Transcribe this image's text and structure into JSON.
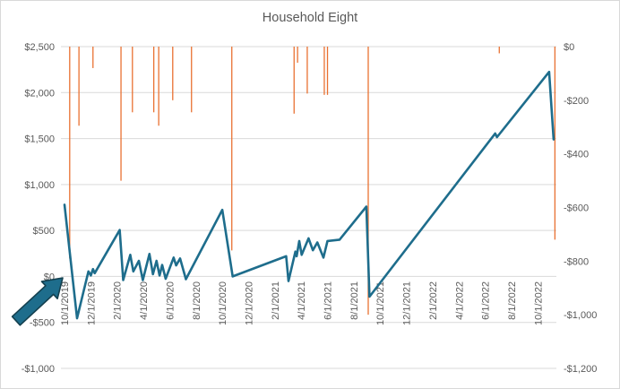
{
  "chart_data": {
    "type": "line",
    "title": "Household Eight",
    "legend": "none",
    "grid": true,
    "style": {
      "background": "#ffffff",
      "gridline_color": "#d9d9d9",
      "label_color": "#595959",
      "title_color": "#595959"
    },
    "x_axis": {
      "kind": "date",
      "start": "2019-10-01",
      "months_per_tick": 2,
      "tick_labels": [
        "10/1/2019",
        "12/1/2019",
        "2/1/2020",
        "4/1/2020",
        "6/1/2020",
        "8/1/2020",
        "10/1/2020",
        "12/1/2020",
        "2/1/2021",
        "4/1/2021",
        "6/1/2021",
        "8/1/2021",
        "10/1/2021",
        "12/1/2021",
        "2/1/2022",
        "4/1/2022",
        "6/1/2022",
        "8/1/2022",
        "10/1/2022"
      ],
      "label_rotation_deg": -90
    },
    "y_axis_left": {
      "min": -1000,
      "max": 2500,
      "step": 500,
      "tick_labels": [
        "$2,500",
        "$2,000",
        "$1,500",
        "$1,000",
        "$500",
        "$0",
        "-$500",
        "-$1,000"
      ]
    },
    "y_axis_right": {
      "min": -1200,
      "max": 0,
      "step": 200,
      "tick_labels": [
        "$0",
        "-$200",
        "-$400",
        "-$600",
        "-$800",
        "-$1,000",
        "-$1,200"
      ]
    },
    "series": [
      {
        "id": "balance-line",
        "type": "line",
        "axis": "left",
        "color": "#1e6d8c",
        "width": 2.6,
        "points": [
          [
            "2019-10-01",
            780
          ],
          [
            "2019-10-30",
            -455
          ],
          [
            "2019-11-26",
            55
          ],
          [
            "2019-12-01",
            10
          ],
          [
            "2019-12-06",
            80
          ],
          [
            "2019-12-10",
            35
          ],
          [
            "2020-02-07",
            505
          ],
          [
            "2020-02-15",
            -40
          ],
          [
            "2020-03-01",
            235
          ],
          [
            "2020-03-08",
            55
          ],
          [
            "2020-03-21",
            170
          ],
          [
            "2020-03-30",
            -40
          ],
          [
            "2020-04-15",
            245
          ],
          [
            "2020-04-23",
            25
          ],
          [
            "2020-05-01",
            170
          ],
          [
            "2020-05-08",
            10
          ],
          [
            "2020-05-14",
            125
          ],
          [
            "2020-05-22",
            -25
          ],
          [
            "2020-06-10",
            205
          ],
          [
            "2020-06-16",
            120
          ],
          [
            "2020-06-25",
            195
          ],
          [
            "2020-07-08",
            -30
          ],
          [
            "2020-10-01",
            725
          ],
          [
            "2020-10-25",
            0
          ],
          [
            "2021-02-27",
            220
          ],
          [
            "2021-03-02",
            -50
          ],
          [
            "2021-03-18",
            270
          ],
          [
            "2021-03-21",
            220
          ],
          [
            "2021-03-27",
            385
          ],
          [
            "2021-04-02",
            235
          ],
          [
            "2021-04-18",
            415
          ],
          [
            "2021-04-28",
            285
          ],
          [
            "2021-05-08",
            370
          ],
          [
            "2021-05-22",
            205
          ],
          [
            "2021-06-01",
            385
          ],
          [
            "2021-06-29",
            400
          ],
          [
            "2021-08-30",
            760
          ],
          [
            "2021-09-07",
            -220
          ],
          [
            "2022-06-24",
            1555
          ],
          [
            "2022-06-28",
            1515
          ],
          [
            "2022-10-27",
            2225
          ],
          [
            "2022-11-07",
            1490
          ]
        ]
      },
      {
        "id": "expense-drop-lines",
        "type": "vertical-drop-from-top",
        "axis": "right",
        "color": "#e97132",
        "width": 1.3,
        "points": [
          [
            "2019-10-13",
            -790
          ],
          [
            "2019-11-04",
            -295
          ],
          [
            "2019-12-06",
            -80
          ],
          [
            "2020-02-10",
            -500
          ],
          [
            "2020-03-06",
            -245
          ],
          [
            "2020-04-25",
            -245
          ],
          [
            "2020-05-06",
            -295
          ],
          [
            "2020-06-08",
            -200
          ],
          [
            "2020-07-21",
            -245
          ],
          [
            "2020-10-23",
            -760
          ],
          [
            "2021-03-15",
            -250
          ],
          [
            "2021-03-23",
            -60
          ],
          [
            "2021-04-15",
            -175
          ],
          [
            "2021-05-24",
            -180
          ],
          [
            "2021-06-01",
            -180
          ],
          [
            "2021-09-04",
            -1000
          ],
          [
            "2022-07-03",
            -25
          ],
          [
            "2022-11-10",
            -720
          ]
        ]
      }
    ],
    "annotations": [
      {
        "id": "highlight-arrow",
        "type": "block-arrow",
        "direction": "up-right",
        "fill": "#1e6d8c",
        "stroke": "#14404f"
      }
    ]
  }
}
